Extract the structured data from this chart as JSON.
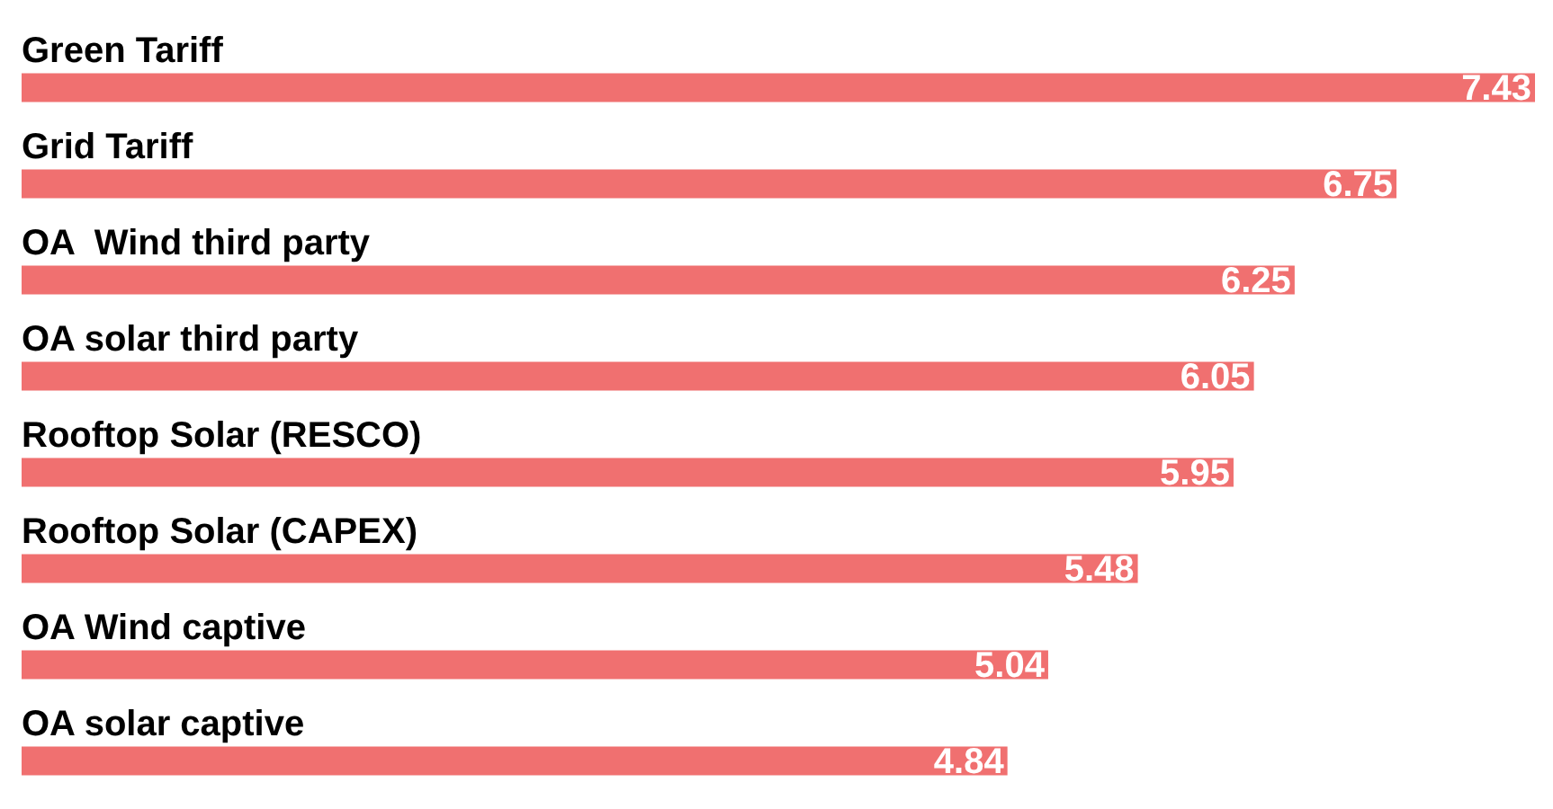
{
  "chart_data": {
    "type": "bar",
    "orientation": "horizontal",
    "categories": [
      "Green Tariff",
      "Grid Tariff",
      "OA  Wind third party",
      "OA solar third party",
      "Rooftop Solar (RESCO)",
      "Rooftop Solar (CAPEX)",
      "OA Wind captive",
      "OA solar captive"
    ],
    "values": [
      7.43,
      6.75,
      6.25,
      6.05,
      5.95,
      5.48,
      5.04,
      4.84
    ],
    "color": "#f07070",
    "data_labels": true,
    "legend": false
  }
}
